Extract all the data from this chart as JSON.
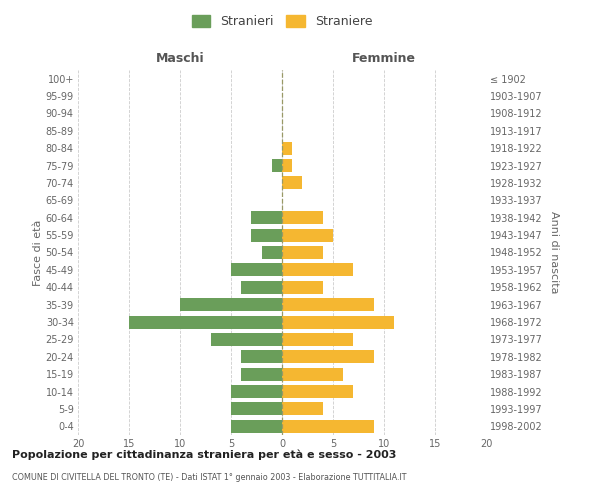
{
  "age_groups": [
    "0-4",
    "5-9",
    "10-14",
    "15-19",
    "20-24",
    "25-29",
    "30-34",
    "35-39",
    "40-44",
    "45-49",
    "50-54",
    "55-59",
    "60-64",
    "65-69",
    "70-74",
    "75-79",
    "80-84",
    "85-89",
    "90-94",
    "95-99",
    "100+"
  ],
  "birth_years": [
    "1998-2002",
    "1993-1997",
    "1988-1992",
    "1983-1987",
    "1978-1982",
    "1973-1977",
    "1968-1972",
    "1963-1967",
    "1958-1962",
    "1953-1957",
    "1948-1952",
    "1943-1947",
    "1938-1942",
    "1933-1937",
    "1928-1932",
    "1923-1927",
    "1918-1922",
    "1913-1917",
    "1908-1912",
    "1903-1907",
    "≤ 1902"
  ],
  "males": [
    5,
    5,
    5,
    4,
    4,
    7,
    15,
    10,
    4,
    5,
    2,
    3,
    3,
    0,
    0,
    1,
    0,
    0,
    0,
    0,
    0
  ],
  "females": [
    9,
    4,
    7,
    6,
    9,
    7,
    11,
    9,
    4,
    7,
    4,
    5,
    4,
    0,
    2,
    1,
    1,
    0,
    0,
    0,
    0
  ],
  "male_color": "#6a9e5a",
  "female_color": "#f5b731",
  "background_color": "#ffffff",
  "grid_color": "#cccccc",
  "title": "Popolazione per cittadinanza straniera per età e sesso - 2003",
  "subtitle": "COMUNE DI CIVITELLA DEL TRONTO (TE) - Dati ISTAT 1° gennaio 2003 - Elaborazione TUTTITALIA.IT",
  "xlabel_left": "Maschi",
  "xlabel_right": "Femmine",
  "ylabel_left": "Fasce di età",
  "ylabel_right": "Anni di nascita",
  "legend_male": "Stranieri",
  "legend_female": "Straniere",
  "xlim": 20,
  "bar_height": 0.75
}
